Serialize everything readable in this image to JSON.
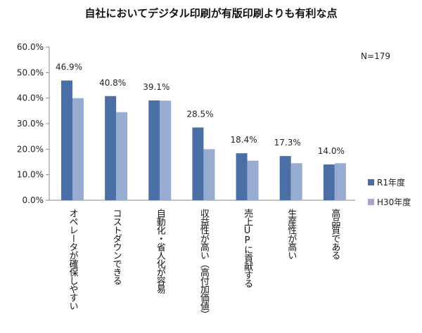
{
  "chart_data": {
    "type": "bar",
    "title": "自社においてデジタル印刷が有版印刷よりも有利な点",
    "note": "N=179",
    "categories": [
      "オペレータが確保しやすい",
      "コストダウンできる",
      "自動化・省人化が容易",
      "収益性が高い（高付加価値）",
      "売上UPに貢献する",
      "生産性が高い",
      "高品質である"
    ],
    "series": [
      {
        "name": "R1年度",
        "color": "#4a6fa5",
        "values": [
          46.9,
          40.8,
          39.1,
          28.5,
          18.4,
          17.3,
          14.0
        ],
        "labels": [
          "46.9%",
          "40.8%",
          "39.1%",
          "28.5%",
          "18.4%",
          "17.3%",
          "14.0%"
        ]
      },
      {
        "name": "H30年度",
        "color": "#98acd2",
        "values": [
          40.0,
          34.5,
          39.0,
          20.0,
          15.5,
          14.5,
          14.5
        ]
      }
    ],
    "yticks": [
      "0.0%",
      "10.0%",
      "20.0%",
      "30.0%",
      "40.0%",
      "50.0%",
      "60.0%"
    ],
    "ylim": [
      0,
      60
    ],
    "legend_position": "right"
  }
}
